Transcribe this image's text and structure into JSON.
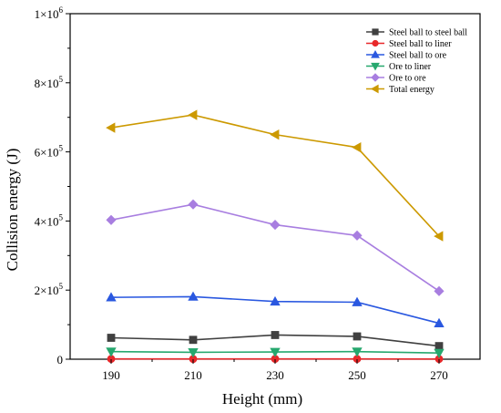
{
  "chart_data": {
    "type": "line",
    "xlabel": "Height (mm)",
    "ylabel": "Collision energy (J)",
    "x": [
      190,
      210,
      230,
      250,
      270
    ],
    "ylim": [
      0,
      1000000
    ],
    "y_ticks": [
      {
        "value": 0,
        "mantissa": "0",
        "exponent": ""
      },
      {
        "value": 200000,
        "mantissa": "2×10",
        "exponent": "5"
      },
      {
        "value": 400000,
        "mantissa": "4×10",
        "exponent": "5"
      },
      {
        "value": 600000,
        "mantissa": "6×10",
        "exponent": "5"
      },
      {
        "value": 800000,
        "mantissa": "8×10",
        "exponent": "5"
      },
      {
        "value": 1000000,
        "mantissa": "1×10",
        "exponent": "6"
      }
    ],
    "x_tick_labels": [
      "190",
      "210",
      "230",
      "250",
      "270"
    ],
    "legend_position": "top-right",
    "grid": false,
    "series": [
      {
        "name": "Steel ball to steel ball",
        "color": "#404040",
        "marker": "square",
        "values": [
          62000,
          56000,
          70000,
          66000,
          38000
        ]
      },
      {
        "name": "Steel ball to liner",
        "color": "#e8282a",
        "marker": "circle",
        "values": [
          800,
          700,
          900,
          800,
          600
        ]
      },
      {
        "name": "Steel ball to ore",
        "color": "#2a58e0",
        "marker": "triangle-up",
        "values": [
          179000,
          181000,
          167000,
          165000,
          104000
        ]
      },
      {
        "name": "Ore to liner",
        "color": "#26a86e",
        "marker": "triangle-down",
        "values": [
          22000,
          20000,
          21000,
          22000,
          18000
        ]
      },
      {
        "name": "Ore to ore",
        "color": "#a87ee0",
        "marker": "diamond",
        "values": [
          403000,
          448000,
          389000,
          358000,
          197000
        ]
      },
      {
        "name": "Total energy",
        "color": "#cc9900",
        "marker": "triangle-left",
        "values": [
          670000,
          707000,
          650000,
          613000,
          356000
        ]
      }
    ]
  }
}
